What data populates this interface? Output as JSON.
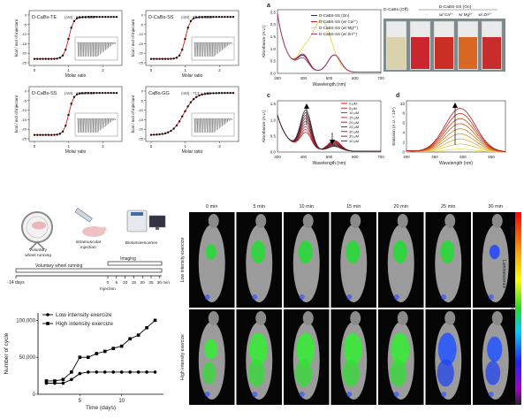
{
  "itc": {
    "panels": [
      {
        "title": "D-CaBs-TE",
        "kd": "(nM) : 65.6 ± 3.57",
        "xticks": [
          "0",
          "1",
          "2"
        ],
        "yticks": [
          "0",
          "-5",
          "-10",
          "-15",
          "-20",
          "-25"
        ],
        "kind": "sig"
      },
      {
        "title": "D-CaBs-SS",
        "kd": "(nM) : 79.2 ± 5.88",
        "xticks": [
          "0",
          "1",
          "2"
        ],
        "yticks": [
          "0",
          "-5",
          "-10",
          "-15",
          "-20",
          "-25"
        ],
        "kind": "sig"
      },
      {
        "title": "D-CaBs-SS",
        "kd": "(nM) : 114 ± 5.66",
        "xticks": [
          "0",
          "1",
          "2"
        ],
        "yticks": [
          "0",
          "-5",
          "-10",
          "-15",
          "-20",
          "-25"
        ],
        "kind": "sig"
      },
      {
        "title": "CaBs-GG",
        "kd": "(nM) : 713 ± 106",
        "xticks": [
          "0",
          "1",
          "2"
        ],
        "yticks": [
          "0",
          "-5",
          "-10",
          "-15",
          "-20",
          "-25"
        ],
        "kind": "gg"
      }
    ],
    "xlabel": "Molar ratio",
    "ylabel": "kcal / mol of injectant"
  },
  "panel_a": {
    "letter": "a",
    "ylabel": "Absorbance (A.U.)",
    "xlabel": "Wavelength (nm)",
    "xticks": [
      "300",
      "400",
      "500",
      "600",
      "700"
    ],
    "yticks": [
      "0.0",
      "0.5",
      "1.0",
      "1.5",
      "2.0",
      "2.5"
    ],
    "legend": [
      "D-CaBS-SS (On)",
      "D-CaBS-SS (w/ Ca²⁺)",
      "D-CaBS-SS (w/ Mg²⁺)",
      "D-CaBS-SS (w/ Zn²⁺)"
    ],
    "colors": [
      "#2b2b6b",
      "#b22222",
      "#e8d84a",
      "#a03a8a"
    ]
  },
  "vials": {
    "left_header": "D-CaBs (Off)",
    "right_header": "D-CaBS-SS (On)",
    "labels": [
      "-",
      "w/ Ca²⁺",
      "w/ Mg²⁺",
      "w/ Zn²⁺"
    ]
  },
  "panel_c": {
    "letter": "c",
    "ylabel": "Absorbance (A.U.)",
    "xlabel": "Wavelength (nm)",
    "xticks": [
      "300",
      "400",
      "500",
      "600",
      "700"
    ],
    "yticks": [
      "0.0",
      "0.5",
      "1.0",
      "1.5"
    ],
    "legend": [
      "0 μM",
      "5 μM",
      "10 μM",
      "15 μM",
      "20 μM",
      "25 μM",
      "30 μM",
      "35 μM",
      "40 μM"
    ]
  },
  "panel_d": {
    "letter": "d",
    "ylabel": "Emission (A.U. × 10⁶)",
    "xlabel": "Wavelength (nm)",
    "xticks": [
      "400",
      "450",
      "500",
      "550"
    ],
    "yticks": [
      "0",
      "2",
      "4",
      "6",
      "8",
      "10"
    ]
  },
  "protocol": {
    "icon_labels": [
      "Voluntary wheel running",
      "intramuscular injection",
      "Bioluminescence"
    ],
    "timeline_label": "Voluntary wheel running",
    "imaging_label": "Imaging",
    "start": "-14 days",
    "ticks": [
      "0",
      "5",
      "10",
      "15",
      "20",
      "25",
      "30 min"
    ],
    "injection": "Injection"
  },
  "cycles": {
    "ylabel": "Number of cycle",
    "xlabel": "Time (days)",
    "yticks": [
      "0",
      "50,000",
      "100,000"
    ],
    "xticks": [
      "5",
      "10"
    ],
    "series": [
      {
        "name": "Low intensity exercize",
        "x": [
          1,
          2,
          3,
          4,
          5,
          6,
          7,
          8,
          9,
          10,
          11,
          12,
          13,
          14
        ],
        "y": [
          15000,
          15000,
          15000,
          20000,
          28000,
          30000,
          30000,
          30000,
          30000,
          30000,
          30000,
          30000,
          30000,
          30000
        ]
      },
      {
        "name": "High intensity exercize",
        "x": [
          1,
          2,
          3,
          4,
          5,
          6,
          7,
          8,
          9,
          10,
          11,
          12,
          13,
          14
        ],
        "y": [
          18000,
          18000,
          20000,
          30000,
          50000,
          50000,
          55000,
          58000,
          62000,
          65000,
          75000,
          80000,
          90000,
          100000
        ]
      }
    ]
  },
  "imaging": {
    "times": [
      "0 min",
      "5 min",
      "10 min",
      "15 min",
      "20 min",
      "25 min",
      "30 min"
    ],
    "rows": [
      "Low intensity exercize",
      "High intensity exercize"
    ],
    "colorbar_label": "Luminescence",
    "colorbar_ticks": [
      "39960",
      "19800",
      "0"
    ]
  }
}
